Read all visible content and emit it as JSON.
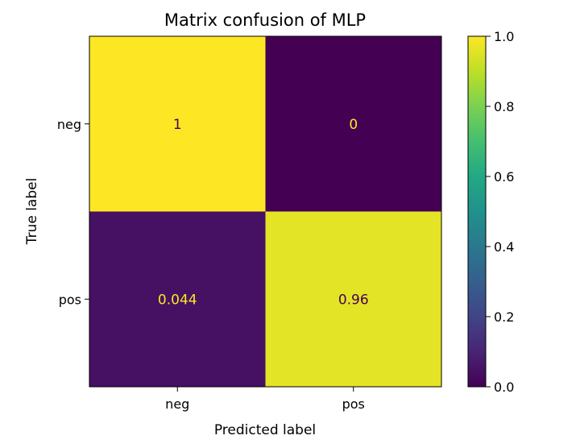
{
  "chart_data": {
    "type": "heatmap",
    "title": "Matrix confusion of MLP",
    "xlabel": "Predicted label",
    "ylabel": "True label",
    "x_categories": [
      "neg",
      "pos"
    ],
    "y_categories": [
      "neg",
      "pos"
    ],
    "values": [
      [
        1,
        0
      ],
      [
        0.044,
        0.96
      ]
    ],
    "cell_labels": [
      [
        "1",
        "0"
      ],
      [
        "0.044",
        "0.96"
      ]
    ],
    "colormap": "viridis",
    "colorbar": {
      "range": [
        0.0,
        1.0
      ],
      "ticks": [
        0.0,
        0.2,
        0.4,
        0.6,
        0.8,
        1.0
      ],
      "tick_labels": [
        "0.0",
        "0.2",
        "0.4",
        "0.6",
        "0.8",
        "1.0"
      ]
    },
    "colors": {
      "low": "#440154",
      "high": "#fde725",
      "text_on_dark": "#fde725",
      "text_on_light": "#440154"
    }
  }
}
